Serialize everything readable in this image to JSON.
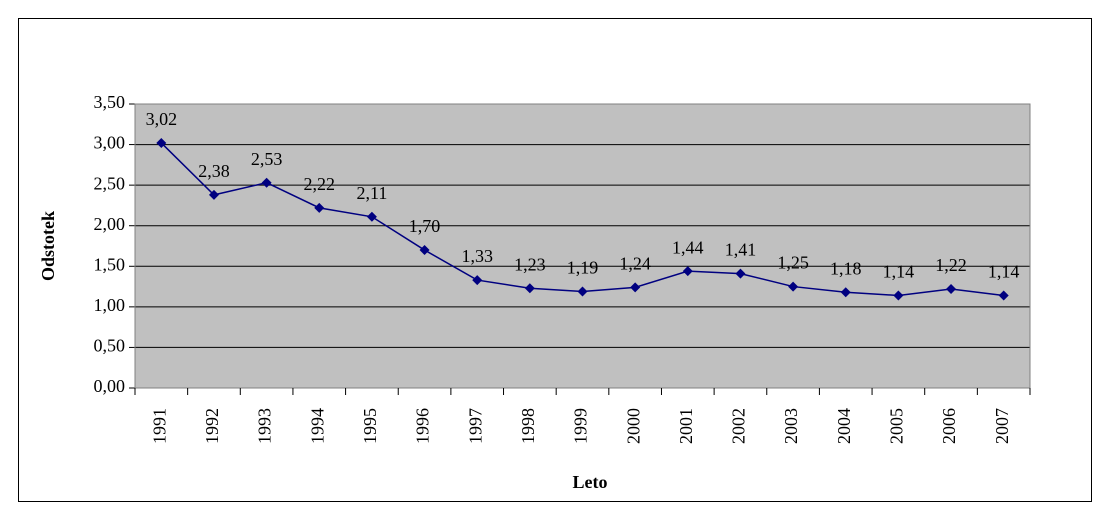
{
  "chart_data": {
    "type": "line",
    "x_label": "Leto",
    "y_label": "Odstotek",
    "categories": [
      "1991",
      "1992",
      "1993",
      "1994",
      "1995",
      "1996",
      "1997",
      "1998",
      "1999",
      "2000",
      "2001",
      "2002",
      "2003",
      "2004",
      "2005",
      "2006",
      "2007"
    ],
    "series": [
      {
        "color": "#000080",
        "values": [
          3.02,
          2.38,
          2.53,
          2.22,
          2.11,
          1.7,
          1.33,
          1.23,
          1.19,
          1.24,
          1.44,
          1.41,
          1.25,
          1.18,
          1.14,
          1.22,
          1.14
        ],
        "value_labels": [
          "3,02",
          "2,38",
          "2,53",
          "2,22",
          "2,11",
          "1,70",
          "1,33",
          "1,23",
          "1,19",
          "1,24",
          "1,44",
          "1,41",
          "1,25",
          "1,18",
          "1,14",
          "1,22",
          "1,14"
        ]
      }
    ],
    "ylim": [
      0,
      3.5
    ],
    "yticks": [
      {
        "value": 0,
        "label": "0,00"
      },
      {
        "value": 0.5,
        "label": "0,50"
      },
      {
        "value": 1,
        "label": "1,00"
      },
      {
        "value": 1.5,
        "label": "1,50"
      },
      {
        "value": 2,
        "label": "2,00"
      },
      {
        "value": 2.5,
        "label": "2,50"
      },
      {
        "value": 3,
        "label": "3,00"
      },
      {
        "value": 3.5,
        "label": "3,50"
      }
    ],
    "grid": true,
    "plot_background": "#c0c0c0"
  }
}
